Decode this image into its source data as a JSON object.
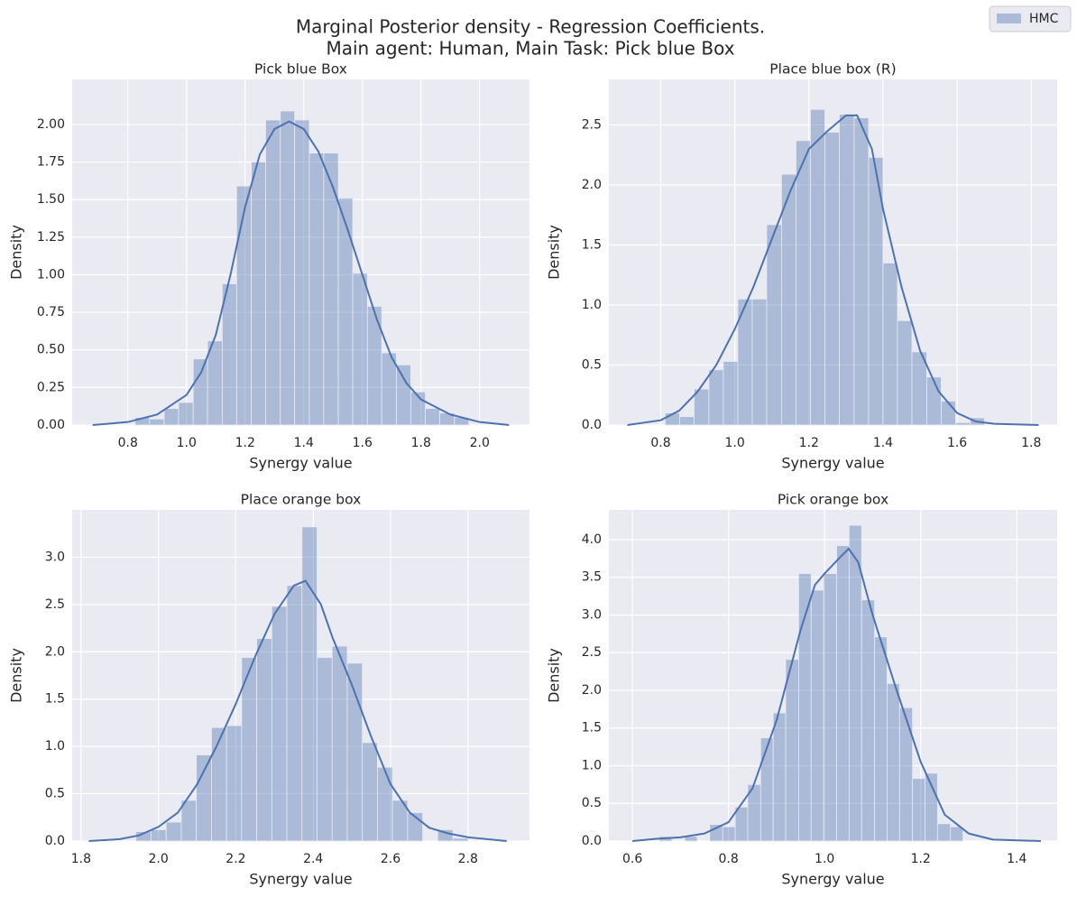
{
  "title": [
    "Marginal Posterior density - Regression Coefficients.",
    "Main agent: Human, Main Task: Pick blue Box"
  ],
  "legend": {
    "name": "HMC",
    "corner": "upper right",
    "color": "#4c72b0"
  },
  "chart_data": [
    {
      "type": "histogram",
      "title": "Pick blue Box",
      "xlabel": "Synergy value",
      "ylabel": "Density",
      "color": "#4c72b0",
      "bar_alpha": 0.4,
      "grid": true,
      "bins": [
        0.825,
        0.874,
        0.924,
        0.973,
        1.023,
        1.072,
        1.122,
        1.171,
        1.221,
        1.27,
        1.32,
        1.369,
        1.419,
        1.468,
        1.518,
        1.567,
        1.617,
        1.666,
        1.716,
        1.765,
        1.815,
        1.864,
        1.914,
        1.963
      ],
      "values": [
        0.05,
        0.04,
        0.11,
        0.15,
        0.44,
        0.56,
        0.94,
        1.59,
        1.75,
        2.03,
        2.09,
        2.03,
        1.81,
        1.81,
        1.51,
        1.01,
        0.79,
        0.48,
        0.4,
        0.22,
        0.11,
        0.08,
        0.05
      ],
      "kde": {
        "x": [
          0.68,
          0.8,
          0.9,
          1.0,
          1.05,
          1.1,
          1.15,
          1.2,
          1.25,
          1.3,
          1.35,
          1.4,
          1.45,
          1.5,
          1.55,
          1.6,
          1.65,
          1.7,
          1.75,
          1.8,
          1.9,
          2.0,
          2.1
        ],
        "y": [
          0.0,
          0.02,
          0.07,
          0.2,
          0.35,
          0.6,
          1.0,
          1.45,
          1.8,
          1.97,
          2.02,
          1.97,
          1.82,
          1.58,
          1.3,
          1.0,
          0.7,
          0.45,
          0.28,
          0.17,
          0.07,
          0.02,
          0.0
        ]
      },
      "xlim": [
        0.61,
        2.17
      ],
      "ylim": [
        0,
        2.3
      ],
      "xticks": [
        0.8,
        {
          "value": 1.0,
          "label": "1.0"
        },
        1.2,
        1.4,
        1.6,
        1.8,
        {
          "value": 2.0,
          "label": "2.0"
        }
      ],
      "yticks": [
        {
          "value": 0,
          "label": "0.00"
        },
        0.25,
        {
          "value": 0.5,
          "label": "0.50"
        },
        0.75,
        {
          "value": 1,
          "label": "1.00"
        },
        1.25,
        {
          "value": 1.5,
          "label": "1.50"
        },
        1.75,
        {
          "value": 2,
          "label": "2.00"
        }
      ]
    },
    {
      "type": "histogram",
      "title": "Place blue box (R)",
      "xlabel": "Synergy value",
      "ylabel": "Density",
      "color": "#4c72b0",
      "bar_alpha": 0.4,
      "grid": true,
      "bins": [
        0.812,
        0.851,
        0.89,
        0.93,
        0.969,
        1.008,
        1.047,
        1.086,
        1.126,
        1.165,
        1.204,
        1.243,
        1.282,
        1.322,
        1.361,
        1.4,
        1.439,
        1.478,
        1.518,
        1.557,
        1.596,
        1.635,
        1.674
      ],
      "values": [
        0.1,
        0.07,
        0.3,
        0.46,
        0.53,
        1.05,
        1.05,
        1.67,
        2.09,
        2.37,
        2.63,
        2.44,
        2.59,
        2.56,
        2.23,
        1.35,
        0.87,
        0.61,
        0.4,
        0.2,
        0.02,
        0.06
      ],
      "kde": {
        "x": [
          0.71,
          0.8,
          0.85,
          0.9,
          0.95,
          1.0,
          1.05,
          1.1,
          1.15,
          1.2,
          1.25,
          1.3,
          1.33,
          1.37,
          1.4,
          1.45,
          1.5,
          1.55,
          1.6,
          1.65,
          1.7,
          1.82
        ],
        "y": [
          0.0,
          0.04,
          0.12,
          0.28,
          0.5,
          0.8,
          1.15,
          1.55,
          1.95,
          2.3,
          2.45,
          2.58,
          2.58,
          2.3,
          1.8,
          1.15,
          0.62,
          0.28,
          0.1,
          0.03,
          0.01,
          0.0
        ]
      },
      "xlim": [
        0.66,
        1.87
      ],
      "ylim": [
        0,
        2.88
      ],
      "xticks": [
        0.8,
        {
          "value": 1.0,
          "label": "1.0"
        },
        1.2,
        1.4,
        1.6,
        1.8
      ],
      "yticks": [
        {
          "value": 0,
          "label": "0.0"
        },
        0.5,
        {
          "value": 1,
          "label": "1.0"
        },
        1.5,
        {
          "value": 2,
          "label": "2.0"
        },
        2.5
      ]
    },
    {
      "type": "histogram",
      "title": "Place orange box",
      "xlabel": "Synergy value",
      "ylabel": "Density",
      "color": "#4c72b0",
      "bar_alpha": 0.4,
      "grid": true,
      "bins": [
        1.942,
        1.981,
        2.02,
        2.059,
        2.098,
        2.137,
        2.176,
        2.215,
        2.254,
        2.293,
        2.332,
        2.371,
        2.41,
        2.449,
        2.488,
        2.527,
        2.566,
        2.605,
        2.644,
        2.683,
        2.722,
        2.761,
        2.8
      ],
      "values": [
        0.1,
        0.12,
        0.2,
        0.43,
        0.91,
        1.2,
        1.22,
        1.94,
        2.14,
        2.48,
        2.7,
        3.32,
        1.94,
        2.06,
        1.88,
        1.04,
        0.78,
        0.43,
        0.3,
        0.0,
        0.12,
        0.03
      ],
      "kde": {
        "x": [
          1.82,
          1.9,
          1.95,
          2.0,
          2.05,
          2.1,
          2.15,
          2.2,
          2.25,
          2.3,
          2.35,
          2.38,
          2.42,
          2.45,
          2.5,
          2.55,
          2.6,
          2.65,
          2.7,
          2.75,
          2.8,
          2.9
        ],
        "y": [
          0.0,
          0.02,
          0.06,
          0.15,
          0.3,
          0.6,
          1.0,
          1.45,
          1.95,
          2.4,
          2.7,
          2.75,
          2.5,
          2.15,
          1.65,
          1.1,
          0.6,
          0.3,
          0.14,
          0.08,
          0.04,
          0.0
        ]
      },
      "xlim": [
        1.777,
        2.959
      ],
      "ylim": [
        0,
        3.5
      ],
      "xticks": [
        1.8,
        {
          "value": 2.0,
          "label": "2.0"
        },
        2.2,
        2.4,
        2.6,
        2.8
      ],
      "yticks": [
        {
          "value": 0,
          "label": "0.0"
        },
        0.5,
        {
          "value": 1,
          "label": "1.0"
        },
        1.5,
        {
          "value": 2,
          "label": "2.0"
        },
        2.5,
        {
          "value": 3,
          "label": "3.0"
        }
      ]
    },
    {
      "type": "histogram",
      "title": "Pick orange box",
      "xlabel": "Synergy value",
      "ylabel": "Density",
      "color": "#4c72b0",
      "bar_alpha": 0.4,
      "grid": true,
      "bins": [
        0.656,
        0.682,
        0.709,
        0.735,
        0.761,
        0.788,
        0.814,
        0.84,
        0.867,
        0.893,
        0.919,
        0.946,
        0.972,
        0.998,
        1.025,
        1.051,
        1.077,
        1.104,
        1.13,
        1.156,
        1.183,
        1.209,
        1.235,
        1.262,
        1.288
      ],
      "values": [
        0.06,
        0.0,
        0.06,
        0.0,
        0.22,
        0.19,
        0.45,
        0.75,
        1.37,
        1.7,
        2.41,
        3.55,
        3.33,
        3.55,
        3.92,
        4.19,
        3.2,
        2.71,
        2.09,
        1.77,
        0.83,
        0.9,
        0.23,
        0.19
      ],
      "kde": {
        "x": [
          0.6,
          0.65,
          0.7,
          0.75,
          0.8,
          0.85,
          0.9,
          0.95,
          0.98,
          1.0,
          1.03,
          1.05,
          1.07,
          1.1,
          1.15,
          1.2,
          1.25,
          1.3,
          1.35,
          1.45
        ],
        "y": [
          0.0,
          0.03,
          0.05,
          0.1,
          0.25,
          0.7,
          1.6,
          2.8,
          3.4,
          3.55,
          3.75,
          3.88,
          3.7,
          3.0,
          2.0,
          1.05,
          0.35,
          0.1,
          0.02,
          0.0
        ]
      },
      "xlim": [
        0.551,
        1.484
      ],
      "ylim": [
        0,
        4.395
      ],
      "xticks": [
        0.6,
        0.8,
        {
          "value": 1.0,
          "label": "1.0"
        },
        1.2,
        1.4
      ],
      "yticks": [
        {
          "value": 0,
          "label": "0.0"
        },
        0.5,
        {
          "value": 1,
          "label": "1.0"
        },
        1.5,
        {
          "value": 2,
          "label": "2.0"
        },
        2.5,
        {
          "value": 3,
          "label": "3.0"
        },
        3.5,
        {
          "value": 4,
          "label": "4.0"
        }
      ]
    }
  ]
}
